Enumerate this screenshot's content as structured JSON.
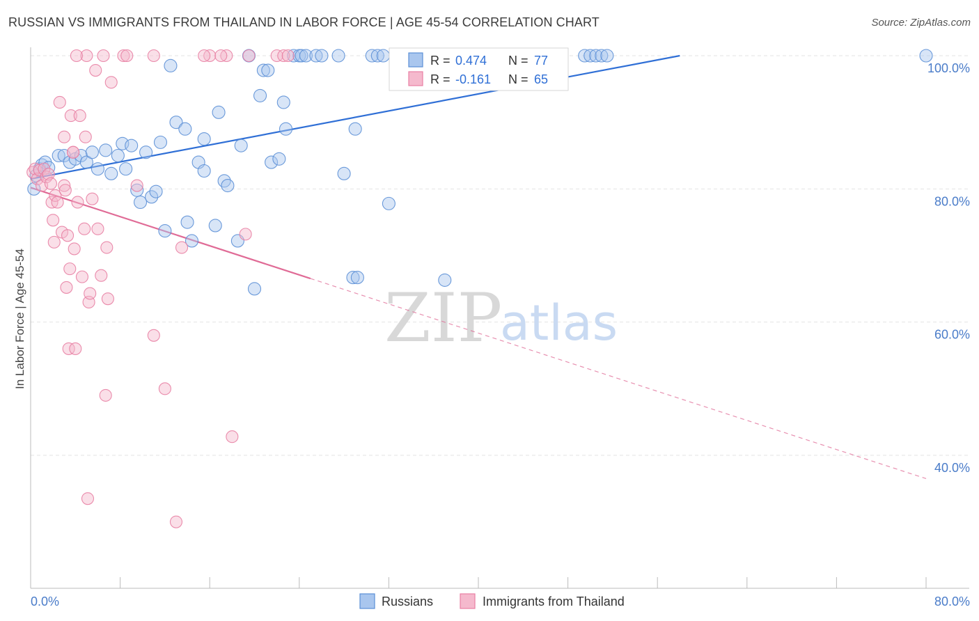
{
  "header": {
    "title": "RUSSIAN VS IMMIGRANTS FROM THAILAND IN LABOR FORCE | AGE 45-54 CORRELATION CHART",
    "source": "Source: ZipAtlas.com"
  },
  "watermark": {
    "zip": "ZIP",
    "atlas": "atlas"
  },
  "colors": {
    "blue": "#5b8fd6",
    "blue_fill": "#a9c6ee",
    "blue_line": "#2f6fd6",
    "pink": "#e87fa3",
    "pink_fill": "#f5b9cd",
    "pink_line": "#e06b96",
    "grid": "#e3e3e3",
    "tick_label": "#4a7cc9"
  },
  "chart_data": {
    "type": "scatter",
    "title": "RUSSIAN VS IMMIGRANTS FROM THAILAND IN LABOR FORCE | AGE 45-54 CORRELATION CHART",
    "xlabel": "",
    "ylabel": "In Labor Force | Age 45-54",
    "xlim": [
      0,
      80
    ],
    "ylim": [
      20,
      102
    ],
    "x_tick_labels": [
      {
        "value": 0,
        "label": "0.0%"
      },
      {
        "value": 80,
        "label": "80.0%"
      }
    ],
    "y_tick_labels": [
      {
        "value": 100,
        "label": "100.0%"
      },
      {
        "value": 80,
        "label": "80.0%"
      },
      {
        "value": 60,
        "label": "60.0%"
      },
      {
        "value": 40,
        "label": "40.0%"
      }
    ],
    "grid": true,
    "legend_position": "bottom",
    "stats_box_position": "top-center",
    "series": [
      {
        "name": "Russians",
        "color": "#5b8fd6",
        "R_label": "R =",
        "R": "0.474",
        "N_label": "N =",
        "N": "77",
        "trend": {
          "x0": 0,
          "y0": 81.5,
          "x1": 58,
          "y1": 100,
          "solid_to": 58
        },
        "points": [
          [
            0.3,
            80
          ],
          [
            0.5,
            82
          ],
          [
            0.8,
            83
          ],
          [
            1.0,
            83.6
          ],
          [
            1.3,
            84
          ],
          [
            1.6,
            83.2
          ],
          [
            2.5,
            85
          ],
          [
            3.0,
            85
          ],
          [
            3.5,
            84
          ],
          [
            4.0,
            84.5
          ],
          [
            4.5,
            85
          ],
          [
            5.0,
            84
          ],
          [
            5.5,
            85.5
          ],
          [
            6.0,
            83
          ],
          [
            6.7,
            85.8
          ],
          [
            7.2,
            82.3
          ],
          [
            7.8,
            85
          ],
          [
            8.2,
            86.8
          ],
          [
            8.5,
            83
          ],
          [
            9.0,
            86.5
          ],
          [
            9.5,
            79.8
          ],
          [
            9.8,
            78
          ],
          [
            10.3,
            85.5
          ],
          [
            10.8,
            78.8
          ],
          [
            11.2,
            79.6
          ],
          [
            11.6,
            87
          ],
          [
            12.0,
            73.7
          ],
          [
            12.5,
            98.5
          ],
          [
            13.0,
            90
          ],
          [
            13.8,
            89
          ],
          [
            14.4,
            72.2
          ],
          [
            14.0,
            75
          ],
          [
            15.0,
            84
          ],
          [
            15.5,
            82.7
          ],
          [
            15.5,
            87.5
          ],
          [
            16.5,
            74.5
          ],
          [
            16.8,
            91.5
          ],
          [
            17.3,
            81.2
          ],
          [
            17.6,
            80.5
          ],
          [
            18.5,
            72.2
          ],
          [
            18.8,
            86.5
          ],
          [
            20.0,
            65
          ],
          [
            20.5,
            94
          ],
          [
            20.8,
            97.8
          ],
          [
            21.2,
            97.8
          ],
          [
            21.5,
            84
          ],
          [
            22.2,
            84.5
          ],
          [
            22.6,
            93
          ],
          [
            22.8,
            89
          ],
          [
            19.5,
            100
          ],
          [
            23.5,
            100
          ],
          [
            24.0,
            100
          ],
          [
            24.2,
            100
          ],
          [
            24.6,
            100
          ],
          [
            25.5,
            100
          ],
          [
            26.0,
            100
          ],
          [
            27.5,
            100
          ],
          [
            28.0,
            82.3
          ],
          [
            28.8,
            66.7
          ],
          [
            29.2,
            66.7
          ],
          [
            29.0,
            89
          ],
          [
            30.5,
            100
          ],
          [
            31.0,
            100
          ],
          [
            31.5,
            100
          ],
          [
            32.0,
            77.8
          ],
          [
            33.5,
            100
          ],
          [
            34.2,
            100
          ],
          [
            35.0,
            100
          ],
          [
            37.0,
            66.3
          ],
          [
            38.0,
            100
          ],
          [
            49.5,
            100
          ],
          [
            50.0,
            100
          ],
          [
            50.5,
            100
          ],
          [
            51.0,
            100
          ],
          [
            51.5,
            100
          ],
          [
            80.0,
            100
          ],
          [
            36.5,
            100
          ]
        ]
      },
      {
        "name": "Immigrants from Thailand",
        "color": "#e87fa3",
        "R_label": "R =",
        "R": "-0.161",
        "N_label": "N =",
        "N": "65",
        "trend": {
          "x0": 0,
          "y0": 80.2,
          "x1": 80,
          "y1": 36.5,
          "solid_to": 25
        },
        "points": [
          [
            0.2,
            82.5
          ],
          [
            0.4,
            83
          ],
          [
            0.6,
            81.5
          ],
          [
            0.8,
            82.8
          ],
          [
            1.0,
            80.5
          ],
          [
            1.2,
            83
          ],
          [
            1.4,
            81.8
          ],
          [
            1.6,
            82.2
          ],
          [
            1.8,
            80.8
          ],
          [
            1.9,
            78
          ],
          [
            2.0,
            75.3
          ],
          [
            2.1,
            72
          ],
          [
            2.2,
            79
          ],
          [
            2.4,
            78
          ],
          [
            2.6,
            93
          ],
          [
            2.8,
            73.5
          ],
          [
            3.0,
            87.8
          ],
          [
            3.0,
            80.5
          ],
          [
            3.1,
            79.8
          ],
          [
            3.2,
            65.2
          ],
          [
            3.3,
            73
          ],
          [
            3.4,
            56
          ],
          [
            3.5,
            68
          ],
          [
            3.6,
            91
          ],
          [
            3.8,
            85.5
          ],
          [
            3.9,
            71
          ],
          [
            4.0,
            56
          ],
          [
            4.2,
            78
          ],
          [
            4.4,
            91
          ],
          [
            4.6,
            66.8
          ],
          [
            4.8,
            74
          ],
          [
            4.9,
            87.8
          ],
          [
            5.1,
            33.5
          ],
          [
            5.2,
            63
          ],
          [
            5.3,
            64.3
          ],
          [
            5.5,
            78.5
          ],
          [
            5.8,
            97.8
          ],
          [
            6.0,
            74
          ],
          [
            6.3,
            67
          ],
          [
            6.7,
            49
          ],
          [
            6.8,
            71.2
          ],
          [
            6.9,
            63.5
          ],
          [
            7.2,
            96
          ],
          [
            8.3,
            100
          ],
          [
            8.6,
            100
          ],
          [
            9.5,
            80.5
          ],
          [
            11.0,
            100
          ],
          [
            11.0,
            58
          ],
          [
            12.0,
            50
          ],
          [
            13.0,
            30
          ],
          [
            13.5,
            71.2
          ],
          [
            16.0,
            100
          ],
          [
            15.5,
            100
          ],
          [
            17.5,
            100
          ],
          [
            18.0,
            42.8
          ],
          [
            19.5,
            100
          ],
          [
            17.0,
            100
          ],
          [
            22.0,
            100
          ],
          [
            22.6,
            100
          ],
          [
            23.0,
            100
          ],
          [
            19.2,
            73.2
          ],
          [
            3.8,
            85.5
          ],
          [
            5.0,
            100
          ],
          [
            4.1,
            100
          ],
          [
            6.5,
            100
          ]
        ]
      }
    ]
  }
}
